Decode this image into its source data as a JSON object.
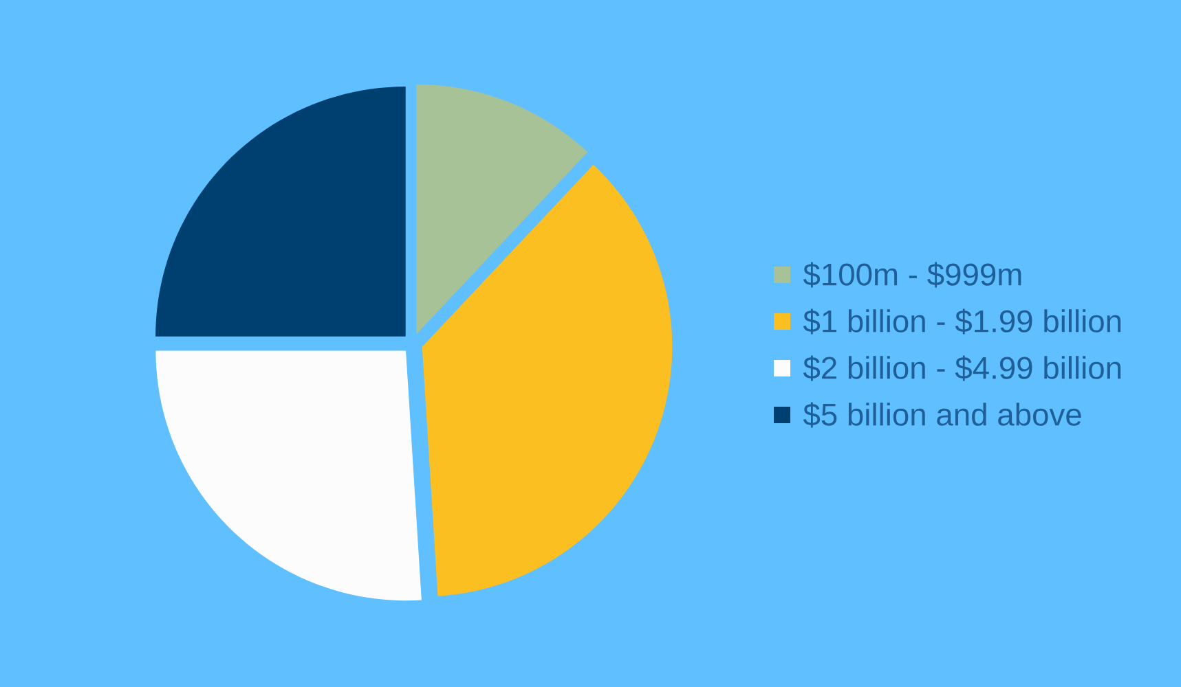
{
  "chart_data": {
    "type": "pie",
    "categories": [
      "$100m - $999m",
      "$1 billion - $1.99 billion",
      "$2 billion - $4.99 billion",
      "$5 billion and above"
    ],
    "values": [
      12,
      37,
      26,
      25
    ],
    "colors": [
      "#a8c298",
      "#fbbf22",
      "#fcfcfc",
      "#004070"
    ],
    "legend": "right"
  }
}
